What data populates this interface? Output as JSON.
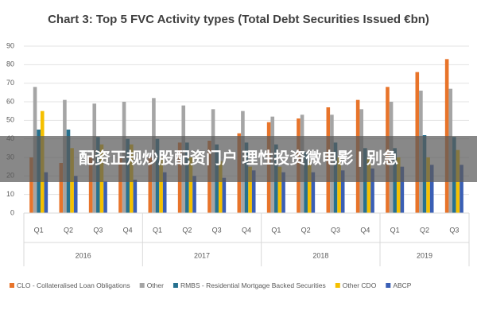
{
  "chart_data": {
    "type": "bar",
    "title": "Chart 3: Top 5 FVC Activity types (Total Debt Securities Issued €bn)",
    "groups": [
      {
        "name": "2016",
        "categories": [
          "Q1",
          "Q2",
          "Q3",
          "Q4"
        ]
      },
      {
        "name": "2017",
        "categories": [
          "Q1",
          "Q2",
          "Q3",
          "Q4"
        ]
      },
      {
        "name": "2018",
        "categories": [
          "Q1",
          "Q2",
          "Q3",
          "Q4"
        ]
      },
      {
        "name": "2019",
        "categories": [
          "Q1",
          "Q2",
          "Q3"
        ]
      }
    ],
    "series": [
      {
        "name": "CLO - Collateralised Loan Obligations",
        "color": "#e8742a",
        "values": [
          30,
          27,
          30,
          30,
          30,
          38,
          39,
          43,
          49,
          51,
          57,
          61,
          68,
          76,
          83
        ]
      },
      {
        "name": "Other",
        "color": "#a5a5a5",
        "values": [
          68,
          61,
          59,
          60,
          62,
          58,
          56,
          55,
          52,
          53,
          53,
          56,
          60,
          66,
          67
        ]
      },
      {
        "name": "RMBS - Residential Mortgage Backed Securities",
        "color": "#26718f",
        "values": [
          45,
          45,
          41,
          40,
          40,
          38,
          37,
          38,
          37,
          33,
          38,
          35,
          35,
          42,
          41
        ]
      },
      {
        "name": "Other CDO",
        "color": "#f5c000",
        "values": [
          55,
          35,
          37,
          37,
          30,
          30,
          28,
          25,
          25,
          28,
          30,
          30,
          30,
          30,
          34
        ]
      },
      {
        "name": "ABCP",
        "color": "#3a5fb5",
        "values": [
          22,
          20,
          17,
          18,
          22,
          20,
          19,
          23,
          22,
          22,
          23,
          24,
          25,
          26,
          26
        ]
      }
    ],
    "ylim": [
      0,
      90
    ],
    "yticks": [
      0,
      10,
      20,
      30,
      40,
      50,
      60,
      70,
      80,
      90
    ],
    "grid": true
  },
  "overlay": {
    "text": "配资正规炒股配资门户 理性投资微电影 | 别急"
  }
}
